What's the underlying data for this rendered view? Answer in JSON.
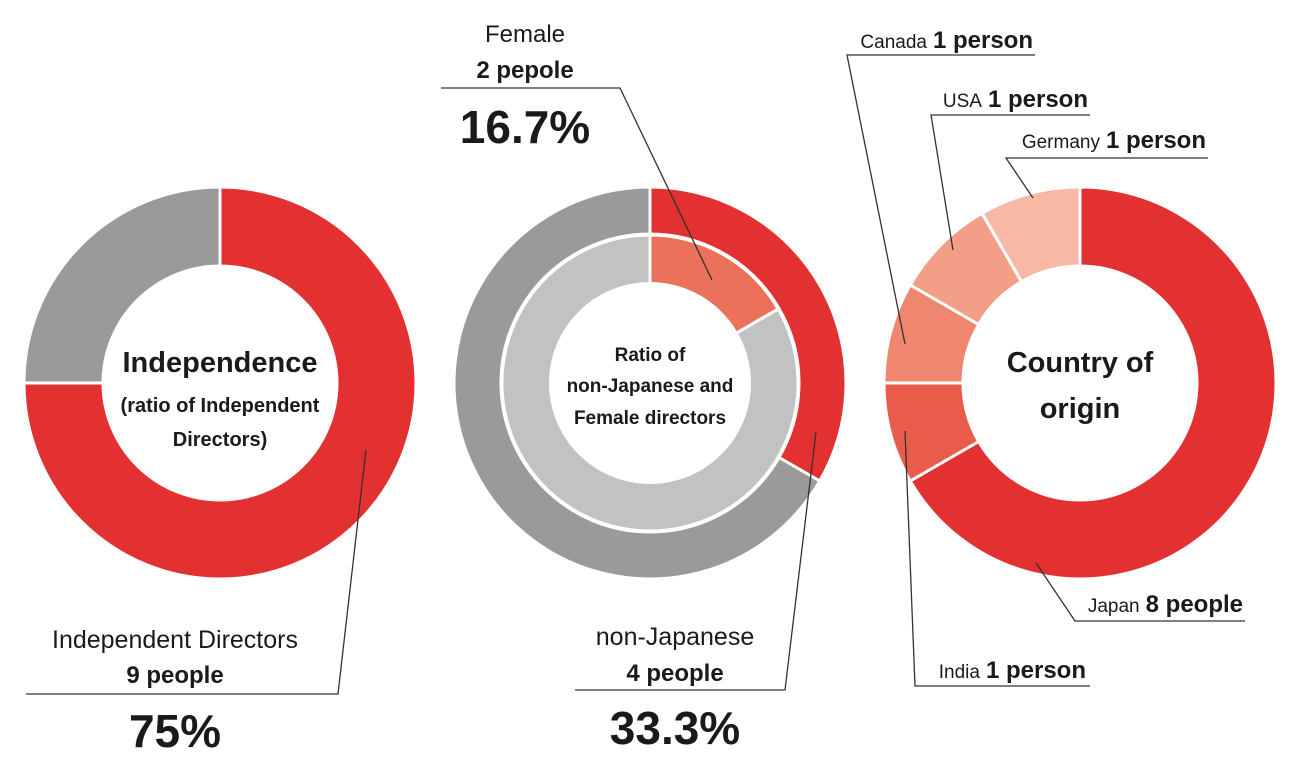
{
  "colors": {
    "red": "#e33030",
    "gray": "#9a9a9a",
    "light_gray": "#c2c2c2",
    "female": "#ec715a",
    "india": "#e95c49",
    "canada": "#ef8670",
    "usa": "#f39e87",
    "germany": "#f7b9a6",
    "leader": "#333333"
  },
  "chart_data": [
    {
      "type": "pie",
      "variant": "donut",
      "center_text": [
        "Independence",
        "(ratio of Independent",
        "Directors)"
      ],
      "slices": [
        {
          "name": "Independent Directors",
          "count_text": "9 people",
          "value": 9,
          "percent_text": "75%"
        },
        {
          "name": "",
          "value": 3
        }
      ]
    },
    {
      "type": "pie",
      "variant": "nested-donut",
      "center_text": [
        "Ratio of",
        "non-Japanese and",
        "Female directors"
      ],
      "outer_ring": [
        {
          "name": "non-Japanese",
          "count_text": "4 people",
          "value": 4,
          "percent_text": "33.3%"
        },
        {
          "name": "",
          "value": 8
        }
      ],
      "inner_ring": [
        {
          "name": "Female",
          "count_text": "2 pepole",
          "value": 2,
          "percent_text": "16.7%"
        },
        {
          "name": "",
          "value": 10
        }
      ]
    },
    {
      "type": "pie",
      "variant": "donut",
      "center_text": [
        "Country of",
        "origin"
      ],
      "slices": [
        {
          "name": "Japan",
          "count_text": "8 people",
          "value": 8
        },
        {
          "name": "India",
          "count_text": "1 person",
          "value": 1
        },
        {
          "name": "Canada",
          "count_text": "1 person",
          "value": 1
        },
        {
          "name": "USA",
          "count_text": "1 person",
          "value": 1
        },
        {
          "name": "Germany",
          "count_text": "1 person",
          "value": 1
        }
      ]
    }
  ]
}
